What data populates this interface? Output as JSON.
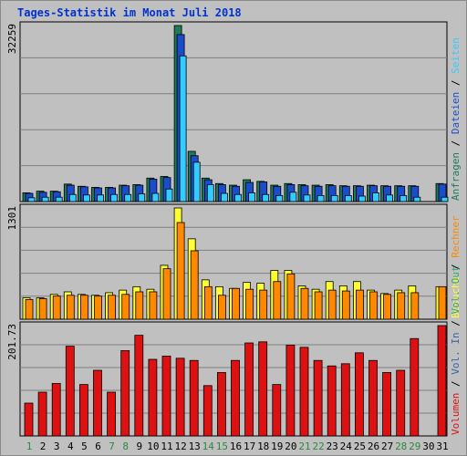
{
  "title": "Tages-Statistik im Monat Juli 2018",
  "colors": {
    "anfragen": "#1e7a5a",
    "dateien": "#1a4ccc",
    "seiten": "#33ccff",
    "besuche": "#ffff33",
    "rechner": "#ff8800",
    "vol_in": "#3366aa",
    "vol_out": "#33aa77",
    "volumen": "#dd1111",
    "weekend": "#2b8a3e",
    "weekday": "#000000"
  },
  "chart_data": [
    {
      "type": "bar",
      "name": "top",
      "ymax_label": "32259",
      "ylim": [
        0,
        32259
      ],
      "categories": [
        "1",
        "2",
        "3",
        "4",
        "5",
        "6",
        "7",
        "8",
        "9",
        "10",
        "11",
        "12",
        "13",
        "14",
        "15",
        "16",
        "17",
        "18",
        "19",
        "20",
        "21",
        "22",
        "23",
        "24",
        "25",
        "26",
        "27",
        "28",
        "29",
        "30",
        "31"
      ],
      "weekend_days": [
        "1",
        "7",
        "8",
        "14",
        "15",
        "21",
        "22",
        "28",
        "29"
      ],
      "legend": [
        "Anfragen",
        "Dateien",
        "Seiten"
      ],
      "series": [
        {
          "name": "Anfragen",
          "values": [
            1600,
            1900,
            1900,
            3200,
            2800,
            2600,
            2600,
            3000,
            3100,
            4300,
            4600,
            32259,
            9200,
            4300,
            3300,
            3000,
            4000,
            3700,
            3000,
            3300,
            3100,
            3000,
            3100,
            2900,
            2900,
            3000,
            2900,
            2900,
            2900,
            0,
            3300
          ]
        },
        {
          "name": "Dateien",
          "values": [
            1500,
            1700,
            1800,
            3000,
            2700,
            2500,
            2500,
            2900,
            3000,
            4100,
            4400,
            30600,
            8400,
            4000,
            3100,
            2800,
            3500,
            3600,
            2800,
            3100,
            2900,
            2800,
            2900,
            2800,
            2800,
            2900,
            2800,
            2800,
            2800,
            0,
            3200
          ]
        },
        {
          "name": "Seiten",
          "values": [
            700,
            800,
            800,
            1300,
            1200,
            1200,
            1300,
            1300,
            1400,
            1500,
            2300,
            26700,
            7200,
            3100,
            1500,
            1300,
            1600,
            1300,
            1100,
            1700,
            1200,
            1100,
            1100,
            1100,
            1000,
            1600,
            1200,
            1100,
            800,
            0,
            800
          ]
        }
      ]
    },
    {
      "type": "bar",
      "name": "middle",
      "ymax_label": "1301",
      "ylim": [
        0,
        1301
      ],
      "categories": [
        "1",
        "2",
        "3",
        "4",
        "5",
        "6",
        "7",
        "8",
        "9",
        "10",
        "11",
        "12",
        "13",
        "14",
        "15",
        "16",
        "17",
        "18",
        "19",
        "20",
        "21",
        "22",
        "23",
        "24",
        "25",
        "26",
        "27",
        "28",
        "29",
        "30",
        "31"
      ],
      "legend": [
        "Besuche",
        "Rechner"
      ],
      "series": [
        {
          "name": "Besuche",
          "values": [
            250,
            250,
            290,
            320,
            290,
            280,
            310,
            340,
            380,
            350,
            630,
            1301,
            940,
            460,
            380,
            360,
            430,
            420,
            570,
            570,
            390,
            350,
            440,
            390,
            440,
            340,
            300,
            340,
            390,
            0,
            380
          ]
        },
        {
          "name": "Rechner",
          "values": [
            230,
            240,
            270,
            280,
            280,
            270,
            280,
            290,
            320,
            320,
            590,
            1130,
            800,
            380,
            280,
            360,
            350,
            340,
            440,
            530,
            360,
            320,
            340,
            330,
            340,
            320,
            290,
            310,
            310,
            0,
            380
          ]
        }
      ]
    },
    {
      "type": "bar",
      "name": "bottom",
      "ymax_label": "201.73",
      "ylim": [
        0,
        201.73
      ],
      "categories": [
        "1",
        "2",
        "3",
        "4",
        "5",
        "6",
        "7",
        "8",
        "9",
        "10",
        "11",
        "12",
        "13",
        "14",
        "15",
        "16",
        "17",
        "18",
        "19",
        "20",
        "21",
        "22",
        "23",
        "24",
        "25",
        "26",
        "27",
        "28",
        "29",
        "30",
        "31"
      ],
      "legend": [
        "Volumen",
        "Vol. In",
        "Vol. Out"
      ],
      "series": [
        {
          "name": "Volumen",
          "values": [
            60,
            80,
            96,
            164,
            94,
            120,
            80,
            156,
            184,
            140,
            146,
            142,
            138,
            92,
            116,
            138,
            170,
            172,
            94,
            166,
            162,
            138,
            128,
            132,
            152,
            138,
            116,
            120,
            178,
            0,
            201.73
          ]
        }
      ]
    }
  ]
}
